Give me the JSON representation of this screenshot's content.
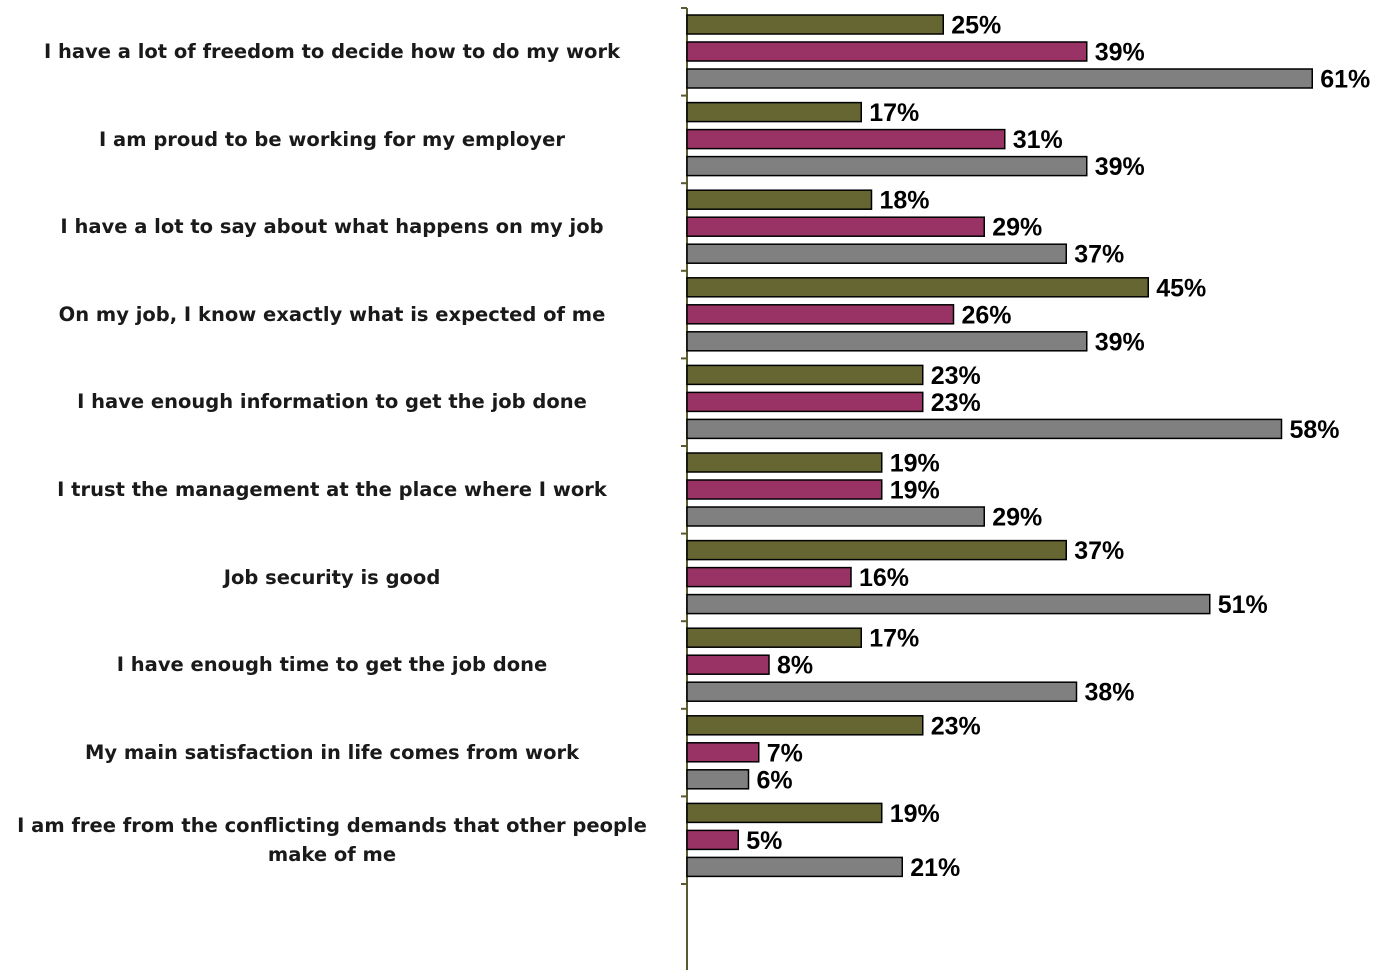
{
  "chart_data": {
    "type": "bar",
    "orientation": "horizontal",
    "categories": [
      "I have a lot of freedom to decide how to do my work",
      "I am proud to be working for my  employer",
      "I have a lot to say about what happens on my job ",
      "On my job, I know exactly what is expected of me",
      "I have enough information to get the job done",
      "I trust the management at the place where I work",
      "Job security is good",
      "I have enough time to get the job done",
      "My main satisfaction in life comes from work",
      "I am free from the conflicting demands that other people make of me"
    ],
    "series": [
      {
        "values": [
          25,
          17,
          18,
          45,
          23,
          19,
          37,
          17,
          23,
          19
        ],
        "color": "#666633"
      },
      {
        "values": [
          39,
          31,
          29,
          26,
          23,
          19,
          16,
          8,
          7,
          5
        ],
        "color": "#993366"
      },
      {
        "values": [
          61,
          39,
          37,
          39,
          58,
          29,
          51,
          38,
          6,
          21
        ],
        "color": "#808080"
      }
    ],
    "value_suffix": "%",
    "xlim": [
      0,
      100
    ],
    "grid": false,
    "legend": "none",
    "title": "",
    "xlabel": "",
    "ylabel": "",
    "axis_color": "#5a5a30"
  }
}
